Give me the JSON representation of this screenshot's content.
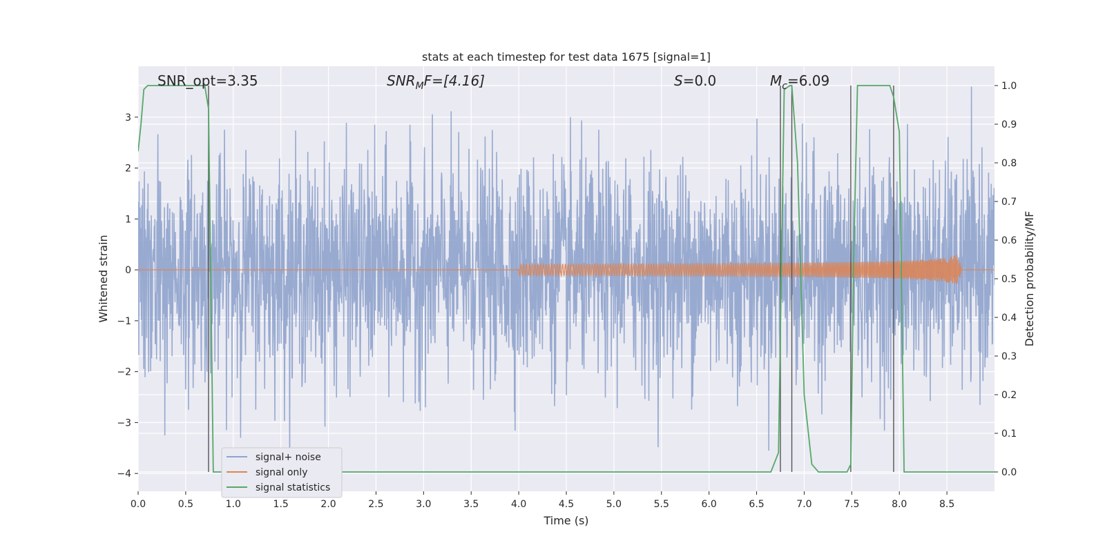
{
  "chart_data": {
    "type": "line",
    "title": "stats at each timestep for test data 1675 [signal=1]",
    "xlabel": "Time (s)",
    "ylabel_left": "Whitened strain",
    "ylabel_right": "Detection probability/MF",
    "xlim": [
      0.0,
      9.0
    ],
    "ylim_left": [
      -4.35,
      4.0
    ],
    "ylim_right": [
      -0.05,
      1.05
    ],
    "xticks": [
      "0.0",
      "0.5",
      "1.0",
      "1.5",
      "2.0",
      "2.5",
      "3.0",
      "3.5",
      "4.0",
      "4.5",
      "5.0",
      "5.5",
      "6.0",
      "6.5",
      "7.0",
      "7.5",
      "8.0",
      "8.5"
    ],
    "yticks_left": [
      "3",
      "2",
      "1",
      "0",
      "−1",
      "−2",
      "−3",
      "−4"
    ],
    "yticks_right": [
      "1.0",
      "0.9",
      "0.8",
      "0.7",
      "0.6",
      "0.5",
      "0.4",
      "0.3",
      "0.2",
      "0.1",
      "0.0"
    ],
    "grid": true,
    "legend_position": "lower-left",
    "annotations": {
      "snr_opt": "SNR_opt=3.35",
      "snr_mf_base": "SNR",
      "snr_mf_sub": "M",
      "snr_mf_rest": "F=[4.16]",
      "s_var": "S",
      "s_rest": "=0.0",
      "mc_base": "M",
      "mc_sub": "c",
      "mc_rest": "=6.09"
    },
    "series": [
      {
        "name": "signal+ noise",
        "color": "#8fa3cc",
        "description_values": "whitened noise, amplitude roughly ±1.3 typical, peaks to about ±3.5"
      },
      {
        "name": "signal only",
        "color": "#dd8452",
        "description_values": "chirp near 0, growing amplitude from ~4.5 s to ~0.35 at 8.65 s, then 0"
      },
      {
        "name": "signal statistics",
        "color": "#55a868",
        "x": [
          0.0,
          0.03,
          0.06,
          0.1,
          0.2,
          0.3,
          0.5,
          0.7,
          0.74,
          0.79,
          0.8,
          1.0,
          2.0,
          3.0,
          4.0,
          5.0,
          6.0,
          6.5,
          6.65,
          6.73,
          6.79,
          6.85,
          6.87,
          6.93,
          7.0,
          7.08,
          7.15,
          7.3,
          7.45,
          7.49,
          7.52,
          7.56,
          7.7,
          7.9,
          7.94,
          8.0,
          8.05,
          8.2,
          8.5,
          9.0
        ],
        "values": [
          0.83,
          0.9,
          0.99,
          1.0,
          1.0,
          1.0,
          1.0,
          1.0,
          0.94,
          0.0,
          0.0,
          0.0,
          0.0,
          0.0,
          0.0,
          0.0,
          0.0,
          0.0,
          0.0,
          0.05,
          0.99,
          1.0,
          1.0,
          0.8,
          0.2,
          0.02,
          0.0,
          0.0,
          0.0,
          0.02,
          0.55,
          1.0,
          1.0,
          1.0,
          0.97,
          0.88,
          0.0,
          0.0,
          0.0,
          0.0
        ]
      }
    ],
    "vertical_lines_x": [
      0.74,
      6.75,
      6.87,
      7.49,
      7.94
    ]
  }
}
